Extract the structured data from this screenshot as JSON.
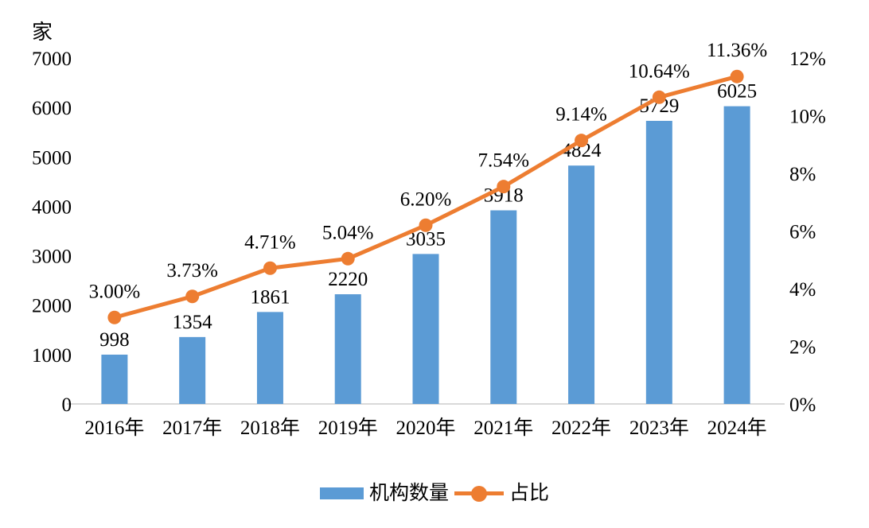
{
  "chart_data": {
    "type": "combo",
    "title": "",
    "categories": [
      "2016年",
      "2017年",
      "2018年",
      "2019年",
      "2020年",
      "2021年",
      "2022年",
      "2023年",
      "2024年"
    ],
    "series": [
      {
        "name": "机构数量",
        "type": "bar",
        "axis": "left",
        "color": "#5B9BD5",
        "values": [
          998,
          1354,
          1861,
          2220,
          3035,
          3918,
          4824,
          5729,
          6025
        ],
        "labels": [
          "998",
          "1354",
          "1861",
          "2220",
          "3035",
          "3918",
          "4824",
          "5729",
          "6025"
        ]
      },
      {
        "name": "占比",
        "type": "line",
        "axis": "right",
        "color": "#ED7D31",
        "values": [
          3.0,
          3.73,
          4.71,
          5.04,
          6.2,
          7.54,
          9.14,
          10.64,
          11.36
        ],
        "labels": [
          "3.00%",
          "3.73%",
          "4.71%",
          "5.04%",
          "6.20%",
          "7.54%",
          "9.14%",
          "10.64%",
          "11.36%"
        ]
      }
    ],
    "left_axis": {
      "unit": "家",
      "min": 0,
      "max": 7000,
      "step": 1000,
      "tick_labels": [
        "0",
        "1000",
        "2000",
        "3000",
        "4000",
        "5000",
        "6000",
        "7000"
      ]
    },
    "right_axis": {
      "min": 0,
      "max": 12,
      "step": 2,
      "tick_labels": [
        "0%",
        "2%",
        "4%",
        "6%",
        "8%",
        "10%",
        "12%"
      ]
    },
    "legend": {
      "position": "bottom"
    },
    "grid": false,
    "background": "#FFFFFF",
    "axis_line_color": "#D9D9D9",
    "text_color": "#000000"
  }
}
